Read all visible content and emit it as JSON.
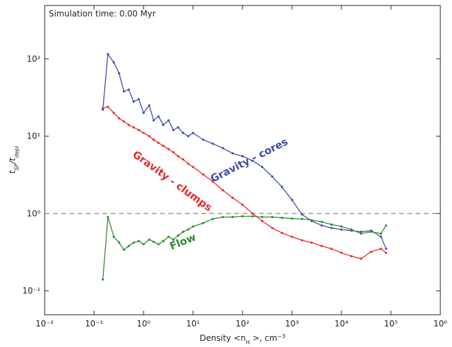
{
  "chart_data": {
    "type": "line",
    "info_text": "Simulation time: 0.00 Myr",
    "xlabel": [
      {
        "text": "Density "
      },
      {
        "text": "<n"
      },
      {
        "text": "H",
        "sub": true
      },
      {
        "text": " >, cm"
      },
      {
        "text": "−3",
        "sup": true
      }
    ],
    "ylabel": [
      {
        "text": "t"
      },
      {
        "text": "SF",
        "sub": true
      },
      {
        "text": "/t"
      },
      {
        "text": "depl",
        "sub": true
      }
    ],
    "x": [
      0.15,
      0.19,
      0.25,
      0.32,
      0.4,
      0.5,
      0.63,
      0.8,
      1,
      1.3,
      1.6,
      2,
      2.5,
      3.2,
      4,
      5,
      6.3,
      8,
      10,
      16,
      25,
      40,
      63,
      100,
      160,
      250,
      400,
      630,
      1000,
      1600,
      2500,
      4000,
      6300,
      10000,
      16000,
      25000,
      40000,
      63000,
      80000
    ],
    "series": [
      {
        "name": "Gravity - cores",
        "color": "#3b4ca8",
        "values": [
          22,
          115,
          90,
          65,
          38,
          40,
          28,
          30,
          20,
          25,
          16,
          18,
          14,
          16,
          12,
          13,
          11,
          10,
          11,
          9,
          8,
          7,
          6,
          5.5,
          4.8,
          4,
          3,
          2.2,
          1.5,
          0.97,
          0.8,
          0.7,
          0.65,
          0.62,
          0.6,
          0.58,
          0.6,
          0.5,
          0.35
        ]
      },
      {
        "name": "Gravity - clumps",
        "color": "#e8282a",
        "values": [
          23,
          24,
          20,
          17,
          15.5,
          14,
          13,
          12,
          11,
          10,
          9,
          8.2,
          7.5,
          6.8,
          6.2,
          5.5,
          5,
          4.4,
          4,
          3.2,
          2.6,
          2,
          1.6,
          1.3,
          1,
          0.8,
          0.65,
          0.56,
          0.5,
          0.45,
          0.42,
          0.38,
          0.35,
          0.31,
          0.28,
          0.26,
          0.32,
          0.35,
          0.31
        ]
      },
      {
        "name": "Flow",
        "color": "#2e8b2e",
        "values": [
          0.14,
          0.9,
          0.5,
          0.42,
          0.34,
          0.38,
          0.42,
          0.44,
          0.4,
          0.46,
          0.43,
          0.4,
          0.44,
          0.5,
          0.46,
          0.52,
          0.58,
          0.62,
          0.68,
          0.75,
          0.85,
          0.9,
          0.9,
          0.92,
          0.92,
          0.9,
          0.9,
          0.88,
          0.86,
          0.85,
          0.82,
          0.78,
          0.72,
          0.68,
          0.62,
          0.55,
          0.58,
          0.55,
          0.7
        ]
      }
    ],
    "xlog": true,
    "ylog": true,
    "xlim": [
      0.01,
      1000000
    ],
    "ylim": [
      0.049,
      490
    ],
    "xticks": [
      {
        "value": 0.01,
        "label": "10⁻²"
      },
      {
        "value": 0.1,
        "label": "10⁻¹"
      },
      {
        "value": 1,
        "label": "10⁰"
      },
      {
        "value": 10,
        "label": "10¹"
      },
      {
        "value": 100,
        "label": "10²"
      },
      {
        "value": 1000,
        "label": "10³"
      },
      {
        "value": 10000,
        "label": "10⁴"
      },
      {
        "value": 100000,
        "label": "10⁵"
      },
      {
        "value": 1000000,
        "label": "10⁶"
      }
    ],
    "yticks": [
      {
        "value": 0.1,
        "label": "10⁻¹"
      },
      {
        "value": 1,
        "label": "10⁰"
      },
      {
        "value": 10,
        "label": "10¹"
      },
      {
        "value": 100,
        "label": "10²"
      }
    ],
    "hline": 1,
    "grid": false
  }
}
